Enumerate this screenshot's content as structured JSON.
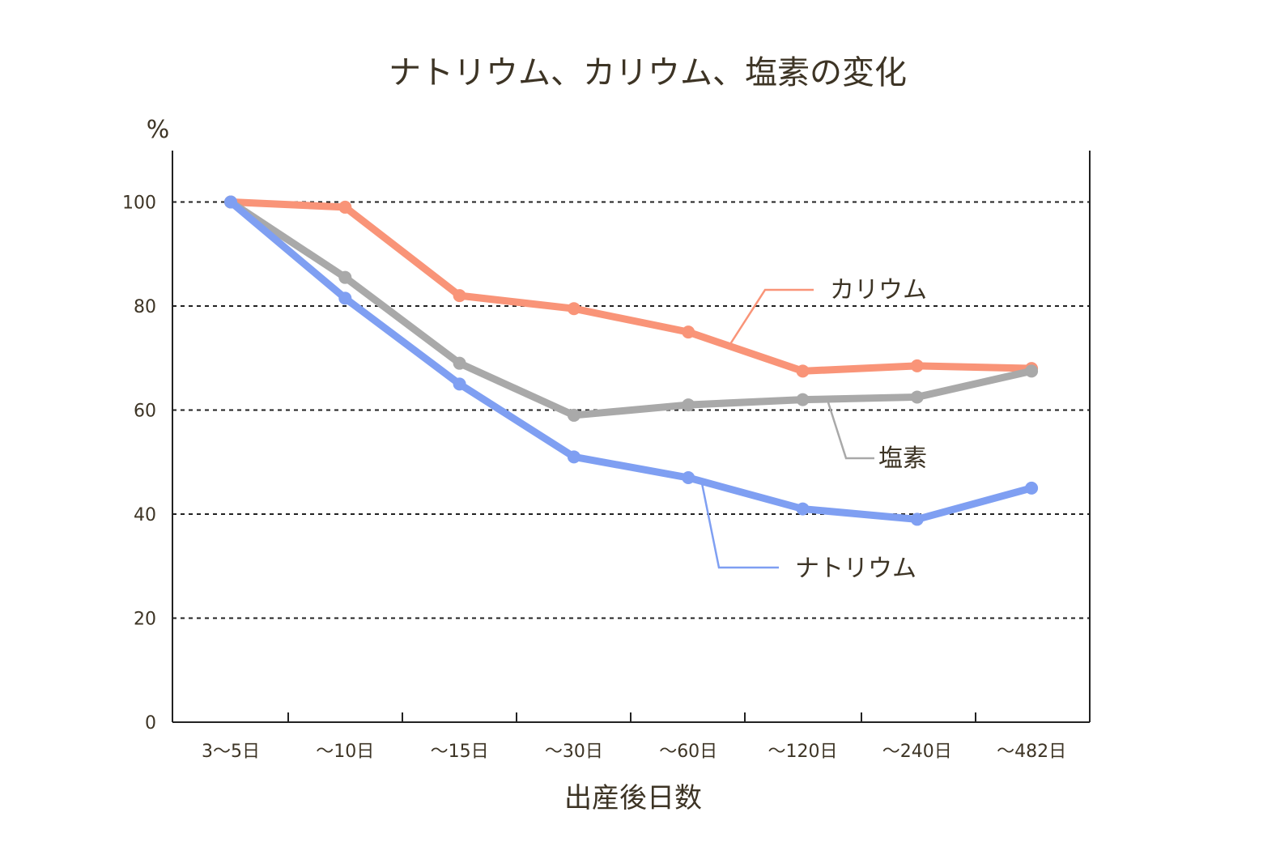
{
  "chart_data": {
    "type": "line",
    "title": "ナトリウム、カリウム、塩素の変化",
    "ylabel": "%",
    "xlabel": "出産後日数",
    "categories": [
      "3〜5日",
      "〜10日",
      "〜15日",
      "〜30日",
      "〜60日",
      "〜120日",
      "〜240日",
      "〜482日"
    ],
    "ylim": [
      0,
      110
    ],
    "yticks": [
      0,
      20,
      40,
      60,
      80,
      100
    ],
    "grid": true,
    "series": [
      {
        "name": "カリウム",
        "color": "#f99478",
        "values": [
          100,
          99,
          82,
          79.5,
          75,
          67.5,
          68.5,
          68
        ]
      },
      {
        "name": "塩素",
        "color": "#a9a9a9",
        "values": [
          100,
          85.5,
          69,
          59,
          61,
          62,
          62.5,
          67.5
        ]
      },
      {
        "name": "ナトリウム",
        "color": "#7f9ff2",
        "values": [
          100,
          81.5,
          65,
          51,
          47,
          41,
          39,
          45
        ]
      }
    ]
  }
}
